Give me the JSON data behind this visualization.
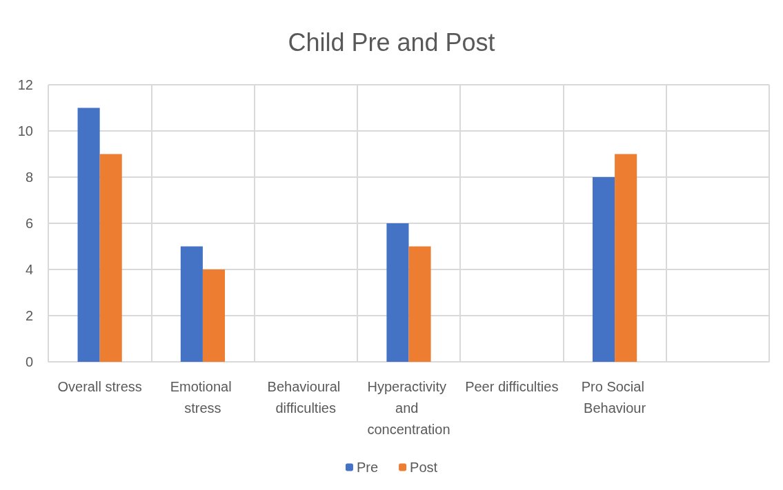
{
  "chart_data": {
    "type": "bar",
    "title": "Child Pre and Post",
    "categories": [
      "Overall stress",
      "Emotional stress",
      "Behavioural difficulties",
      "Hyperactivity and concentration",
      "Peer difficulties",
      "Pro Social Behaviour",
      null
    ],
    "series": [
      {
        "name": "Pre",
        "color": "#4472c4",
        "values": [
          11,
          5,
          null,
          6,
          null,
          8,
          null
        ]
      },
      {
        "name": "Post",
        "color": "#ed7d31",
        "values": [
          9,
          4,
          null,
          5,
          null,
          9,
          null
        ]
      }
    ],
    "ylim": [
      0,
      12
    ],
    "yticks": [
      0,
      2,
      4,
      6,
      8,
      10,
      12
    ],
    "grid": true,
    "legend": "bottom"
  }
}
